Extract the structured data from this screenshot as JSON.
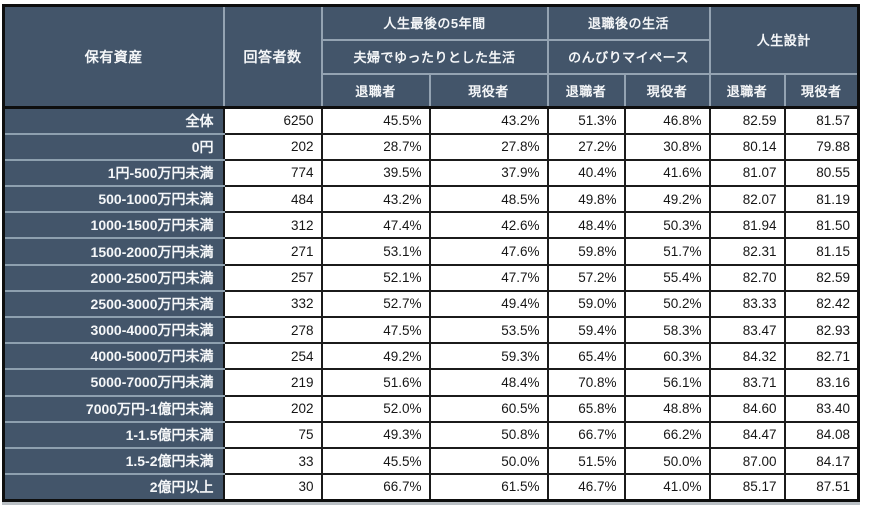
{
  "table": {
    "header": {
      "col_assets": "保有資産",
      "col_respondents": "回答者数",
      "group1_title": "人生最後の5年間",
      "group1_subtitle": "夫婦でゆったりとした生活",
      "group2_title": "退職後の生活",
      "group2_subtitle": "のんびりマイペース",
      "group3_title": "人生設計",
      "sub_headers": [
        "退職者",
        "現役者",
        "退職者",
        "現役者",
        "退職者",
        "現役者"
      ]
    },
    "rows": [
      {
        "label": "全体",
        "values": [
          "6250",
          "45.5%",
          "43.2%",
          "51.3%",
          "46.8%",
          "82.59",
          "81.57"
        ]
      },
      {
        "label": "0円",
        "values": [
          "202",
          "28.7%",
          "27.8%",
          "27.2%",
          "30.8%",
          "80.14",
          "79.88"
        ]
      },
      {
        "label": "1円-500万円未満",
        "values": [
          "774",
          "39.5%",
          "37.9%",
          "40.4%",
          "41.6%",
          "81.07",
          "80.55"
        ]
      },
      {
        "label": "500-1000万円未満",
        "values": [
          "484",
          "43.2%",
          "48.5%",
          "49.8%",
          "49.2%",
          "82.07",
          "81.19"
        ]
      },
      {
        "label": "1000-1500万円未満",
        "values": [
          "312",
          "47.4%",
          "42.6%",
          "48.4%",
          "50.3%",
          "81.94",
          "81.50"
        ]
      },
      {
        "label": "1500-2000万円未満",
        "values": [
          "271",
          "53.1%",
          "47.6%",
          "59.8%",
          "51.7%",
          "82.31",
          "81.15"
        ]
      },
      {
        "label": "2000-2500万円未満",
        "values": [
          "257",
          "52.1%",
          "47.7%",
          "57.2%",
          "55.4%",
          "82.70",
          "82.59"
        ]
      },
      {
        "label": "2500-3000万円未満",
        "values": [
          "332",
          "52.7%",
          "49.4%",
          "59.0%",
          "50.2%",
          "83.33",
          "82.42"
        ]
      },
      {
        "label": "3000-4000万円未満",
        "values": [
          "278",
          "47.5%",
          "53.5%",
          "59.4%",
          "58.3%",
          "83.47",
          "82.93"
        ]
      },
      {
        "label": "4000-5000万円未満",
        "values": [
          "254",
          "49.2%",
          "59.3%",
          "65.4%",
          "60.3%",
          "84.32",
          "82.71"
        ]
      },
      {
        "label": "5000-7000万円未満",
        "values": [
          "219",
          "51.6%",
          "48.4%",
          "70.8%",
          "56.1%",
          "83.71",
          "83.16"
        ]
      },
      {
        "label": "7000万円-1億円未満",
        "values": [
          "202",
          "52.0%",
          "60.5%",
          "65.8%",
          "48.8%",
          "84.60",
          "83.40"
        ]
      },
      {
        "label": "1-1.5億円未満",
        "values": [
          "75",
          "49.3%",
          "50.8%",
          "66.7%",
          "66.2%",
          "84.47",
          "84.08"
        ]
      },
      {
        "label": "1.5-2億円未満",
        "values": [
          "33",
          "45.5%",
          "50.0%",
          "51.5%",
          "50.0%",
          "87.00",
          "84.17"
        ]
      },
      {
        "label": "2億円以上",
        "values": [
          "30",
          "66.7%",
          "61.5%",
          "46.7%",
          "41.0%",
          "85.17",
          "87.51"
        ]
      }
    ]
  },
  "colors": {
    "header_background": "#43556a",
    "header_text": "#f4f6f8",
    "header_grid": "#94a3b2",
    "data_grid": "#1b1b1b",
    "data_text": "#161616",
    "cell_background": "#ffffff"
  }
}
